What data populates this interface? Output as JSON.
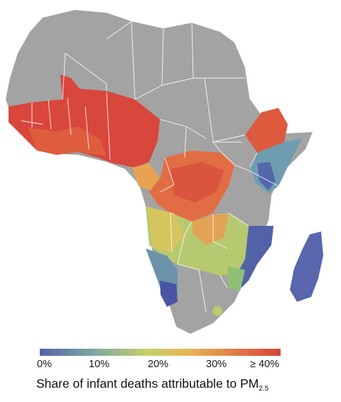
{
  "map": {
    "land_color": "#a3a3a3",
    "border_color": "#ffffff",
    "colorscale": [
      "#5561a8",
      "#7ba7a4",
      "#c7d06a",
      "#e6b556",
      "#e07a46",
      "#d9433a"
    ]
  },
  "legend": {
    "ticks": [
      {
        "label": "0%"
      },
      {
        "label": "10%"
      },
      {
        "label": "20%"
      },
      {
        "label": "30%"
      },
      {
        "label": "≥ 40%"
      }
    ],
    "caption_main": "Share of infant deaths attributable to PM",
    "caption_sub": "2.5"
  }
}
